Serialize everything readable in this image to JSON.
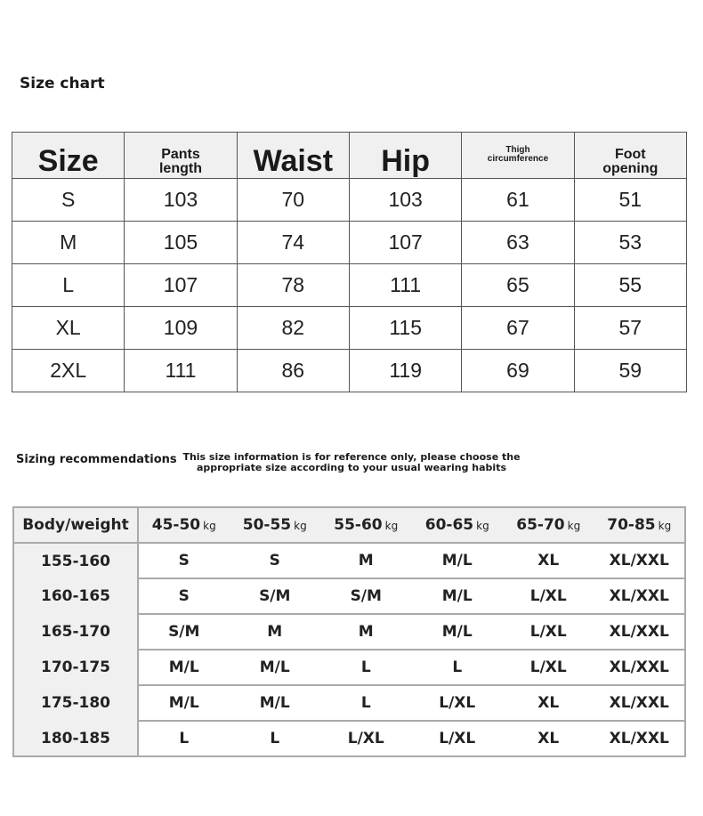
{
  "size_chart": {
    "title": "Size chart",
    "headers": [
      "Size",
      "Pants length",
      "Waist",
      "Hip",
      "Thigh circumference",
      "Foot opening"
    ],
    "rows": [
      [
        "S",
        "103",
        "70",
        "103",
        "61",
        "51"
      ],
      [
        "M",
        "105",
        "74",
        "107",
        "63",
        "53"
      ],
      [
        "L",
        "107",
        "78",
        "111",
        "65",
        "55"
      ],
      [
        "XL",
        "109",
        "82",
        "115",
        "67",
        "57"
      ],
      [
        "2XL",
        "111",
        "86",
        "119",
        "69",
        "59"
      ]
    ]
  },
  "recommendations": {
    "title": "Sizing recommendations",
    "note": "This size information is for reference only, please choose the appropriate size according to your usual wearing habits",
    "corner_header": "Body/weight",
    "unit": "kg",
    "weights": [
      "45-50",
      "50-55",
      "55-60",
      "60-65",
      "65-70",
      "70-85"
    ],
    "rows": [
      {
        "height": "155-160",
        "sizes": [
          "S",
          "S",
          "M",
          "M/L",
          "XL",
          "XL/XXL"
        ]
      },
      {
        "height": "160-165",
        "sizes": [
          "S",
          "S/M",
          "S/M",
          "M/L",
          "L/XL",
          "XL/XXL"
        ]
      },
      {
        "height": "165-170",
        "sizes": [
          "S/M",
          "M",
          "M",
          "M/L",
          "L/XL",
          "XL/XXL"
        ]
      },
      {
        "height": "170-175",
        "sizes": [
          "M/L",
          "M/L",
          "L",
          "L",
          "L/XL",
          "XL/XXL"
        ]
      },
      {
        "height": "175-180",
        "sizes": [
          "M/L",
          "M/L",
          "L",
          "L/XL",
          "XL",
          "XL/XXL"
        ]
      },
      {
        "height": "180-185",
        "sizes": [
          "L",
          "L",
          "L/XL",
          "L/XL",
          "XL",
          "XL/XXL"
        ]
      }
    ]
  }
}
